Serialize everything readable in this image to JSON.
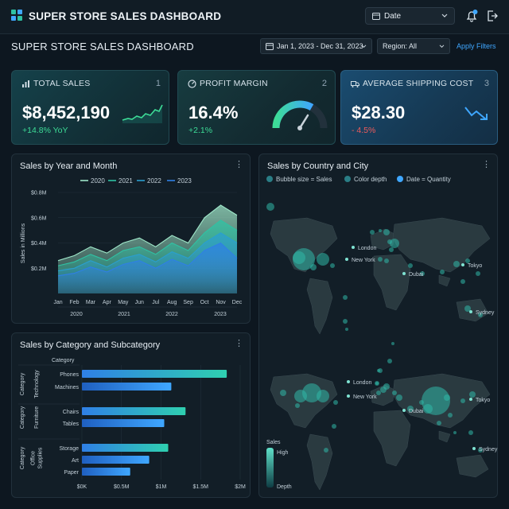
{
  "app": {
    "title": "SUPER STORE SALES DASHBOARD",
    "date_select": "Date"
  },
  "header": {
    "page_title": "SUPER STORE SALES DASHBOARD",
    "date_range": "Jan 1, 2023 - Dec 31, 2023",
    "region": "Region: All",
    "apply": "Apply Filters"
  },
  "kpis": [
    {
      "label": "TOTAL SALES",
      "index": "1",
      "value": "$8,452,190",
      "change": "+14.8% YoY",
      "change_color": "#3ddc97"
    },
    {
      "label": "PROFIT MARGIN",
      "index": "2",
      "value": "16.4%",
      "change": "+2.1%",
      "change_color": "#3ddc97"
    },
    {
      "label": "AVERAGE SHIPPING COST",
      "index": "3",
      "value": "$28.30",
      "change": "- 4.5%",
      "change_color": "#ef5b5b"
    }
  ],
  "chart_data": [
    {
      "type": "area",
      "title": "Sales by Year and Month",
      "ylabel": "Sales in Millions",
      "x": [
        "Jan",
        "Feb",
        "Mar",
        "Apr",
        "May",
        "Jun",
        "Jul",
        "Aug",
        "Sep",
        "Oct",
        "Nov",
        "Dec"
      ],
      "year_labels": [
        "2020",
        "2021",
        "2022",
        "2023"
      ],
      "yticks": [
        "$0.2M",
        "$0.4M",
        "$0.6M",
        "$0.8M"
      ],
      "ylim": [
        0,
        0.8
      ],
      "legend_position": "top",
      "series": [
        {
          "name": "2020",
          "color": "#9fe7c9",
          "values": [
            0.26,
            0.3,
            0.37,
            0.32,
            0.4,
            0.44,
            0.37,
            0.46,
            0.4,
            0.6,
            0.7,
            0.62
          ]
        },
        {
          "name": "2021",
          "color": "#2fc2a4",
          "values": [
            0.22,
            0.25,
            0.31,
            0.26,
            0.34,
            0.37,
            0.31,
            0.4,
            0.34,
            0.48,
            0.58,
            0.5
          ]
        },
        {
          "name": "2022",
          "color": "#2a9fd0",
          "values": [
            0.18,
            0.2,
            0.26,
            0.21,
            0.28,
            0.31,
            0.25,
            0.33,
            0.28,
            0.4,
            0.48,
            0.4
          ]
        },
        {
          "name": "2023",
          "color": "#2f7fe6",
          "values": [
            0.14,
            0.16,
            0.21,
            0.17,
            0.23,
            0.26,
            0.2,
            0.27,
            0.22,
            0.34,
            0.4,
            0.28
          ]
        }
      ]
    },
    {
      "type": "bar",
      "title": "Sales by Category and Subcategory",
      "orientation": "horizontal",
      "axis_title": "Category",
      "group_axis_label": "Category",
      "groups": [
        {
          "name": "Technology",
          "items": [
            {
              "label": "Phones",
              "value": 1.83
            },
            {
              "label": "Machines",
              "value": 1.13
            }
          ]
        },
        {
          "name": "Furniture",
          "items": [
            {
              "label": "Chairs",
              "value": 1.31
            },
            {
              "label": "Tables",
              "value": 1.04
            }
          ]
        },
        {
          "name": "Office Supplies",
          "items": [
            {
              "label": "Storage",
              "value": 1.09
            },
            {
              "label": "Art",
              "value": 0.85
            },
            {
              "label": "Paper",
              "value": 0.61
            }
          ]
        }
      ],
      "xticks": [
        "$0K",
        "$0.5M",
        "$1M",
        "$1.5M",
        "$2M"
      ],
      "xlim": [
        0,
        2
      ]
    }
  ],
  "map": {
    "title": "Sales by Country and City",
    "legend": [
      "Bubble size = Sales",
      "Color depth",
      "Date = Quantity"
    ],
    "cities_top": [
      "London",
      "New York",
      "Dubai",
      "Tokyo",
      "Sydney"
    ],
    "cities_bottom": [
      "London",
      "New York",
      "Dubai",
      "Tokyo",
      "Sydney"
    ],
    "scale_title": "Sales",
    "scale_high": "High",
    "scale_low": "Depth"
  },
  "colors": {
    "accent": "#3fa7ff",
    "teal": "#2fc2a4",
    "positive": "#3ddc97",
    "negative": "#ef5b5b"
  },
  "icons": [
    "logo-icon",
    "calendar-icon",
    "chevron-down-icon",
    "bell-icon",
    "logout-icon",
    "bar-chart-icon",
    "gauge-icon",
    "truck-icon",
    "more-icon"
  ]
}
